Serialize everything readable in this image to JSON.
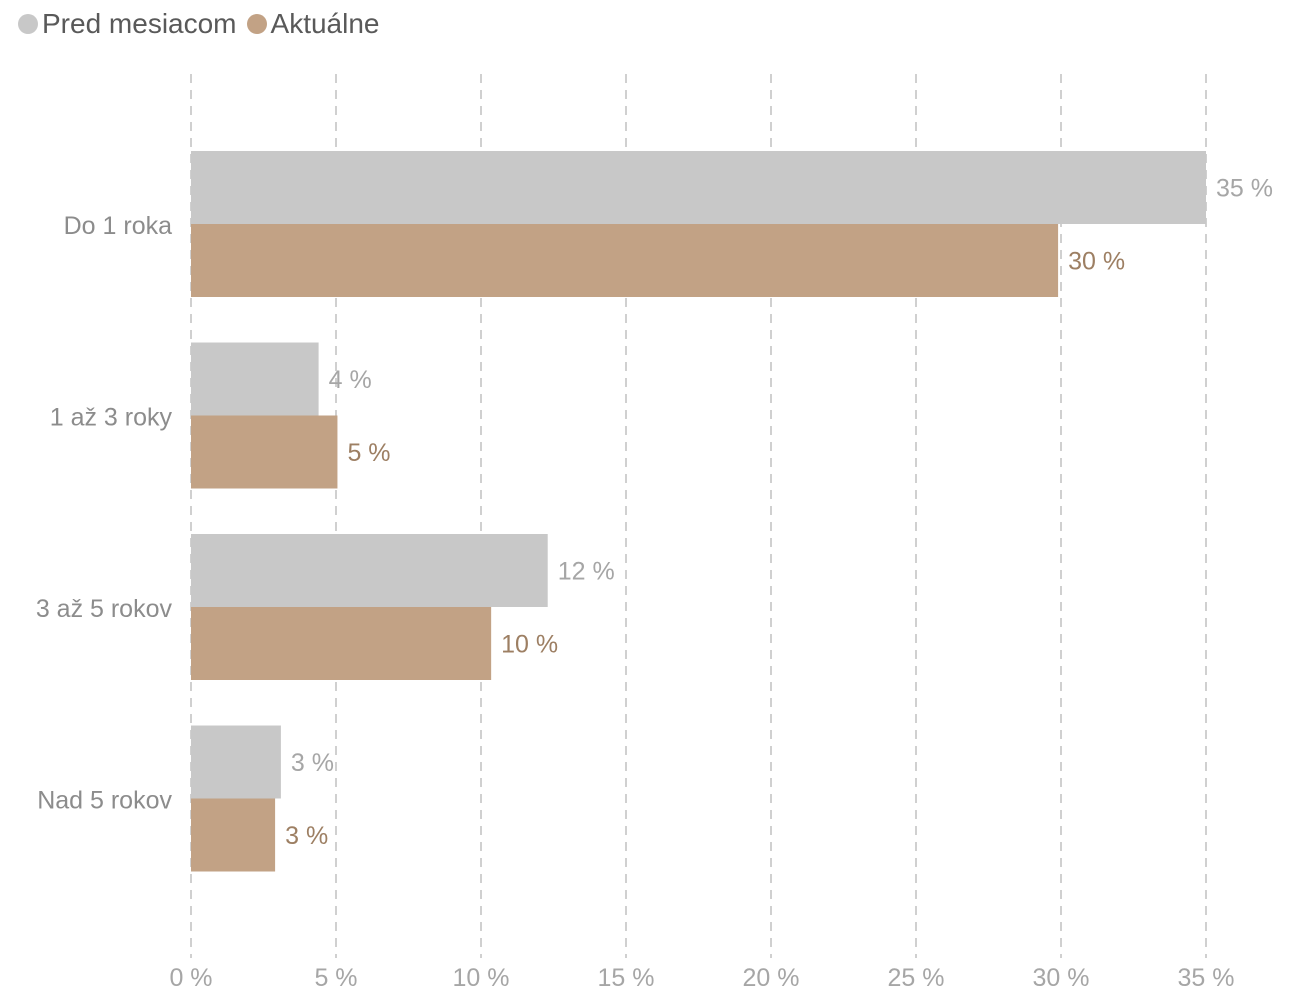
{
  "chart_data": {
    "type": "bar",
    "orientation": "horizontal",
    "categories": [
      "Do 1 roka",
      "1 až 3 roky",
      "3 až 5 rokov",
      "Nad 5 rokov"
    ],
    "series": [
      {
        "name": "Pred mesiacom",
        "color": "#c8c8c8",
        "label_color": "#a6a6a6",
        "values": [
          35,
          4.4,
          12.3,
          3.1
        ],
        "labels": [
          "35 %",
          "4 %",
          "12 %",
          "3 %"
        ]
      },
      {
        "name": "Aktuálne",
        "color": "#c2a285",
        "label_color": "#9d7f63",
        "values": [
          29.9,
          5.05,
          10.35,
          2.9
        ],
        "labels": [
          "30 %",
          "5 %",
          "10 %",
          "3 %"
        ]
      }
    ],
    "xlim": [
      0,
      35
    ],
    "xticks": [
      0,
      5,
      10,
      15,
      20,
      25,
      30,
      35
    ],
    "xtick_labels": [
      "0 %",
      "5 %",
      "10 %",
      "15 %",
      "20 %",
      "25 %",
      "30 %",
      "35 %"
    ],
    "grid": "vertical dashed",
    "legend_position": "top-left",
    "title": "",
    "xlabel": "",
    "ylabel": ""
  }
}
